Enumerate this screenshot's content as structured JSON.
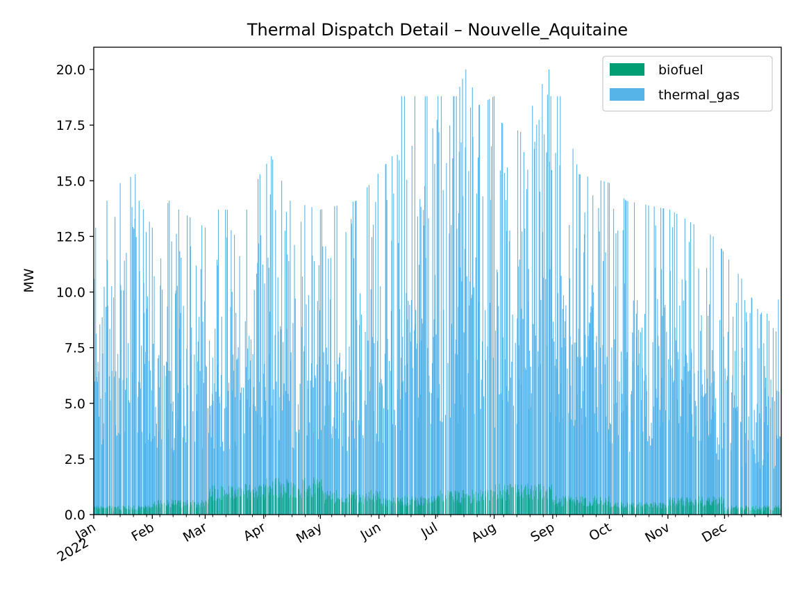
{
  "chart_data": {
    "type": "area",
    "title": "Thermal Dispatch Detail – Nouvelle_Aquitaine",
    "xlabel": "",
    "ylabel": "MW",
    "xlim": [
      "2022-01-01",
      "2022-12-31"
    ],
    "ylim": [
      0,
      21
    ],
    "y_ticks": [
      "0.0",
      "2.5",
      "5.0",
      "7.5",
      "10.0",
      "12.5",
      "15.0",
      "17.5",
      "20.0"
    ],
    "x_ticks": [
      {
        "date": "2022-01-01",
        "label": "Jan",
        "label2": "2022"
      },
      {
        "date": "2022-02-01",
        "label": "Feb"
      },
      {
        "date": "2022-03-01",
        "label": "Mar"
      },
      {
        "date": "2022-04-01",
        "label": "Apr"
      },
      {
        "date": "2022-05-01",
        "label": "May"
      },
      {
        "date": "2022-06-01",
        "label": "Jun"
      },
      {
        "date": "2022-07-01",
        "label": "Jul"
      },
      {
        "date": "2022-08-01",
        "label": "Aug"
      },
      {
        "date": "2022-09-01",
        "label": "Sep"
      },
      {
        "date": "2022-10-01",
        "label": "Oct"
      },
      {
        "date": "2022-11-01",
        "label": "Nov"
      },
      {
        "date": "2022-12-01",
        "label": "Dec"
      }
    ],
    "legend_position": "top-right",
    "stacked": true,
    "series": [
      {
        "name": "biofuel",
        "color": "#009e73",
        "typical_mw": [
          0.3,
          0.5,
          1.0,
          1.2,
          0.8,
          0.6,
          0.8,
          1.0,
          0.6,
          0.4,
          0.6,
          0.3
        ]
      },
      {
        "name": "thermal_gas",
        "color": "#56b4e9",
        "peaks_mw": [
          {
            "date": "2022-01-01",
            "y": 10.6
          },
          {
            "date": "2022-01-02",
            "y": 12.9
          },
          {
            "date": "2022-01-08",
            "y": 14.1
          },
          {
            "date": "2022-01-15",
            "y": 14.9
          },
          {
            "date": "2022-01-23",
            "y": 15.3
          },
          {
            "date": "2022-01-25",
            "y": 14.1
          },
          {
            "date": "2022-02-01",
            "y": 12.9
          },
          {
            "date": "2022-02-10",
            "y": 14.1
          },
          {
            "date": "2022-02-15",
            "y": 13.7
          },
          {
            "date": "2022-03-01",
            "y": 12.9
          },
          {
            "date": "2022-03-08",
            "y": 13.7
          },
          {
            "date": "2022-03-23",
            "y": 13.7
          },
          {
            "date": "2022-03-30",
            "y": 15.3
          },
          {
            "date": "2022-04-05",
            "y": 16.1
          },
          {
            "date": "2022-04-15",
            "y": 14.1
          },
          {
            "date": "2022-05-01",
            "y": 13.7
          },
          {
            "date": "2022-05-20",
            "y": 14.1
          },
          {
            "date": "2022-06-08",
            "y": 16.1
          },
          {
            "date": "2022-06-13",
            "y": 18.8
          },
          {
            "date": "2022-06-20",
            "y": 18.8
          },
          {
            "date": "2022-07-04",
            "y": 18.8
          },
          {
            "date": "2022-07-12",
            "y": 18.8
          },
          {
            "date": "2022-07-17",
            "y": 20.0
          },
          {
            "date": "2022-07-24",
            "y": 18.4
          },
          {
            "date": "2022-08-01",
            "y": 18.8
          },
          {
            "date": "2022-08-05",
            "y": 17.6
          },
          {
            "date": "2022-08-15",
            "y": 17.2
          },
          {
            "date": "2022-08-30",
            "y": 20.0
          },
          {
            "date": "2022-08-31",
            "y": 18.8
          },
          {
            "date": "2022-09-05",
            "y": 18.8
          },
          {
            "date": "2022-09-15",
            "y": 15.3
          },
          {
            "date": "2022-10-01",
            "y": 14.9
          },
          {
            "date": "2022-10-10",
            "y": 14.1
          },
          {
            "date": "2022-11-02",
            "y": 13.7
          },
          {
            "date": "2022-11-10",
            "y": 13.3
          },
          {
            "date": "2022-11-25",
            "y": 12.5
          },
          {
            "date": "2022-12-10",
            "y": 10.6
          },
          {
            "date": "2022-12-20",
            "y": 9.0
          },
          {
            "date": "2022-12-31",
            "y": 10.6
          }
        ]
      }
    ]
  }
}
